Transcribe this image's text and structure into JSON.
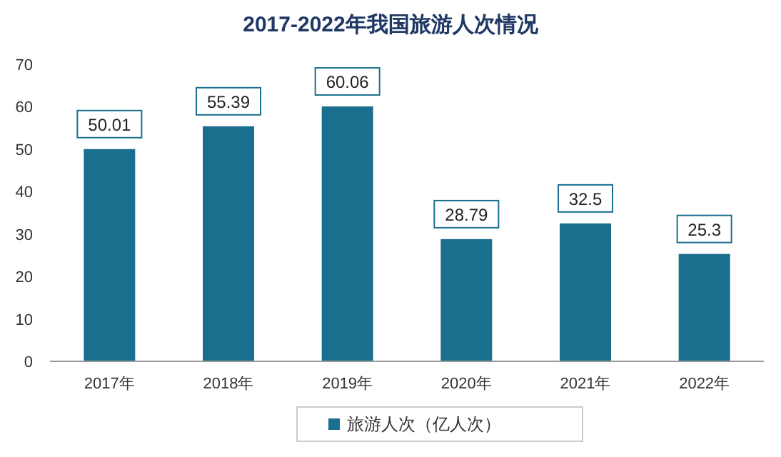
{
  "chart_data": {
    "type": "bar",
    "title": "2017-2022年我国旅游人次情况",
    "categories": [
      "2017年",
      "2018年",
      "2019年",
      "2020年",
      "2021年",
      "2022年"
    ],
    "series": [
      {
        "name": "旅游人次（亿人次）",
        "color": "#1a6e8e",
        "values": [
          50.01,
          55.39,
          60.06,
          28.79,
          32.5,
          25.3
        ]
      }
    ],
    "ylim": [
      0,
      70
    ],
    "yticks": [
      0,
      10,
      20,
      30,
      40,
      50,
      60,
      70
    ],
    "data_labels": true,
    "legend": "bottom",
    "grid": false
  }
}
